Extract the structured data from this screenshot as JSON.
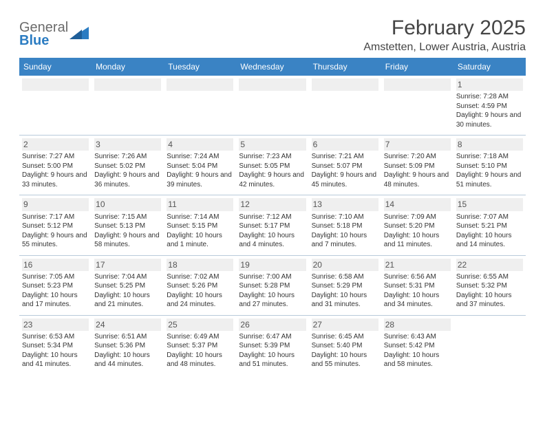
{
  "brand": {
    "word1": "General",
    "word2": "Blue"
  },
  "title": "February 2025",
  "location": "Amstetten, Lower Austria, Austria",
  "colors": {
    "header_bar": "#3a83c4",
    "header_text": "#ffffff",
    "grid_line": "#7aa6c9",
    "daynum_bg": "#efefef",
    "body_text": "#333333",
    "brand_gray": "#6b6b6b",
    "brand_blue": "#2b7cc2"
  },
  "dow": [
    "Sunday",
    "Monday",
    "Tuesday",
    "Wednesday",
    "Thursday",
    "Friday",
    "Saturday"
  ],
  "weeks": [
    [
      null,
      null,
      null,
      null,
      null,
      null,
      {
        "d": "1",
        "sr": "7:28 AM",
        "ss": "4:59 PM",
        "dl": "9 hours and 30 minutes."
      }
    ],
    [
      {
        "d": "2",
        "sr": "7:27 AM",
        "ss": "5:00 PM",
        "dl": "9 hours and 33 minutes."
      },
      {
        "d": "3",
        "sr": "7:26 AM",
        "ss": "5:02 PM",
        "dl": "9 hours and 36 minutes."
      },
      {
        "d": "4",
        "sr": "7:24 AM",
        "ss": "5:04 PM",
        "dl": "9 hours and 39 minutes."
      },
      {
        "d": "5",
        "sr": "7:23 AM",
        "ss": "5:05 PM",
        "dl": "9 hours and 42 minutes."
      },
      {
        "d": "6",
        "sr": "7:21 AM",
        "ss": "5:07 PM",
        "dl": "9 hours and 45 minutes."
      },
      {
        "d": "7",
        "sr": "7:20 AM",
        "ss": "5:09 PM",
        "dl": "9 hours and 48 minutes."
      },
      {
        "d": "8",
        "sr": "7:18 AM",
        "ss": "5:10 PM",
        "dl": "9 hours and 51 minutes."
      }
    ],
    [
      {
        "d": "9",
        "sr": "7:17 AM",
        "ss": "5:12 PM",
        "dl": "9 hours and 55 minutes."
      },
      {
        "d": "10",
        "sr": "7:15 AM",
        "ss": "5:13 PM",
        "dl": "9 hours and 58 minutes."
      },
      {
        "d": "11",
        "sr": "7:14 AM",
        "ss": "5:15 PM",
        "dl": "10 hours and 1 minute."
      },
      {
        "d": "12",
        "sr": "7:12 AM",
        "ss": "5:17 PM",
        "dl": "10 hours and 4 minutes."
      },
      {
        "d": "13",
        "sr": "7:10 AM",
        "ss": "5:18 PM",
        "dl": "10 hours and 7 minutes."
      },
      {
        "d": "14",
        "sr": "7:09 AM",
        "ss": "5:20 PM",
        "dl": "10 hours and 11 minutes."
      },
      {
        "d": "15",
        "sr": "7:07 AM",
        "ss": "5:21 PM",
        "dl": "10 hours and 14 minutes."
      }
    ],
    [
      {
        "d": "16",
        "sr": "7:05 AM",
        "ss": "5:23 PM",
        "dl": "10 hours and 17 minutes."
      },
      {
        "d": "17",
        "sr": "7:04 AM",
        "ss": "5:25 PM",
        "dl": "10 hours and 21 minutes."
      },
      {
        "d": "18",
        "sr": "7:02 AM",
        "ss": "5:26 PM",
        "dl": "10 hours and 24 minutes."
      },
      {
        "d": "19",
        "sr": "7:00 AM",
        "ss": "5:28 PM",
        "dl": "10 hours and 27 minutes."
      },
      {
        "d": "20",
        "sr": "6:58 AM",
        "ss": "5:29 PM",
        "dl": "10 hours and 31 minutes."
      },
      {
        "d": "21",
        "sr": "6:56 AM",
        "ss": "5:31 PM",
        "dl": "10 hours and 34 minutes."
      },
      {
        "d": "22",
        "sr": "6:55 AM",
        "ss": "5:32 PM",
        "dl": "10 hours and 37 minutes."
      }
    ],
    [
      {
        "d": "23",
        "sr": "6:53 AM",
        "ss": "5:34 PM",
        "dl": "10 hours and 41 minutes."
      },
      {
        "d": "24",
        "sr": "6:51 AM",
        "ss": "5:36 PM",
        "dl": "10 hours and 44 minutes."
      },
      {
        "d": "25",
        "sr": "6:49 AM",
        "ss": "5:37 PM",
        "dl": "10 hours and 48 minutes."
      },
      {
        "d": "26",
        "sr": "6:47 AM",
        "ss": "5:39 PM",
        "dl": "10 hours and 51 minutes."
      },
      {
        "d": "27",
        "sr": "6:45 AM",
        "ss": "5:40 PM",
        "dl": "10 hours and 55 minutes."
      },
      {
        "d": "28",
        "sr": "6:43 AM",
        "ss": "5:42 PM",
        "dl": "10 hours and 58 minutes."
      },
      null
    ]
  ],
  "labels": {
    "sunrise": "Sunrise: ",
    "sunset": "Sunset: ",
    "daylight": "Daylight: "
  }
}
